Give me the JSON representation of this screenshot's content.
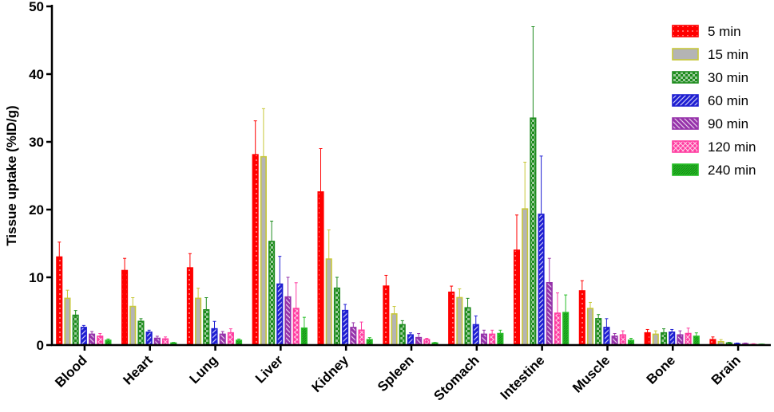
{
  "chart_data": {
    "type": "bar",
    "title": "",
    "xlabel": "",
    "ylabel": "Tissue uptake (%ID/g)",
    "ylim": [
      0,
      50
    ],
    "yticks": [
      0,
      10,
      20,
      30,
      40,
      50
    ],
    "grid": false,
    "legend_position": "top-right",
    "categories": [
      "Blood",
      "Heart",
      "Lung",
      "Liver",
      "Kidney",
      "Spleen",
      "Stomach",
      "Intestine",
      "Muscle",
      "Bone",
      "Brain"
    ],
    "series": [
      {
        "name": "5 min",
        "color": "#ff0000",
        "pattern": "dots",
        "values": [
          13.0,
          11.0,
          11.4,
          28.1,
          22.6,
          8.7,
          7.8,
          14.0,
          8.0,
          1.8,
          0.8
        ],
        "errors": [
          2.2,
          1.8,
          2.1,
          5.0,
          6.4,
          1.6,
          0.9,
          5.2,
          1.5,
          0.5,
          0.4
        ]
      },
      {
        "name": "15 min",
        "color": "#c8c83a",
        "pattern": "solid-gray",
        "values": [
          6.9,
          5.7,
          6.9,
          27.8,
          12.7,
          4.6,
          7.0,
          20.1,
          5.4,
          1.6,
          0.5
        ],
        "errors": [
          1.2,
          1.3,
          1.5,
          7.1,
          4.3,
          1.1,
          1.3,
          6.9,
          0.9,
          0.5,
          0.3
        ]
      },
      {
        "name": "30 min",
        "color": "#1e8c1e",
        "pattern": "checker",
        "values": [
          4.4,
          3.5,
          5.2,
          15.3,
          8.4,
          3.0,
          5.5,
          33.5,
          3.9,
          1.8,
          0.3
        ],
        "errors": [
          0.7,
          0.4,
          1.8,
          3.0,
          1.6,
          0.6,
          1.4,
          13.5,
          0.6,
          0.6,
          0.1
        ]
      },
      {
        "name": "60 min",
        "color": "#1e1ed2",
        "pattern": "diag-right",
        "values": [
          2.6,
          1.9,
          2.4,
          9.0,
          5.1,
          1.5,
          3.0,
          19.3,
          2.6,
          1.9,
          0.2
        ],
        "errors": [
          0.3,
          0.3,
          1.1,
          4.1,
          0.9,
          0.3,
          1.3,
          8.6,
          1.3,
          0.4,
          0.1
        ]
      },
      {
        "name": "90 min",
        "color": "#9632aa",
        "pattern": "diag-left",
        "values": [
          1.6,
          1.0,
          1.6,
          7.1,
          2.6,
          1.1,
          1.6,
          9.2,
          1.3,
          1.5,
          0.2
        ],
        "errors": [
          0.4,
          0.3,
          0.4,
          2.9,
          0.7,
          0.6,
          0.6,
          3.6,
          0.4,
          0.6,
          0.1
        ]
      },
      {
        "name": "120 min",
        "color": "#ff3ca0",
        "pattern": "crosshatch",
        "values": [
          1.3,
          0.9,
          1.8,
          5.4,
          2.2,
          0.8,
          1.6,
          4.7,
          1.5,
          1.7,
          0.1
        ],
        "errors": [
          0.4,
          0.3,
          0.6,
          3.8,
          1.2,
          0.2,
          0.6,
          3.0,
          0.6,
          0.8,
          0.1
        ]
      },
      {
        "name": "240 min",
        "color": "#28be28",
        "pattern": "diag-dense",
        "values": [
          0.7,
          0.3,
          0.7,
          2.5,
          0.8,
          0.3,
          1.7,
          4.8,
          0.7,
          1.3,
          0.1
        ],
        "errors": [
          0.2,
          0.1,
          0.2,
          1.6,
          0.3,
          0.1,
          0.5,
          2.6,
          0.3,
          0.5,
          0.05
        ]
      }
    ]
  }
}
